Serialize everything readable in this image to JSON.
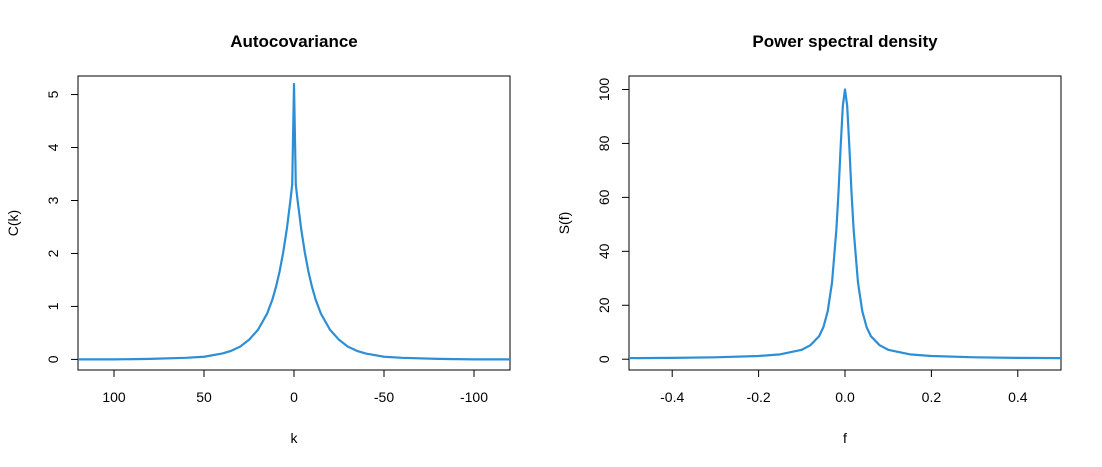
{
  "chart_data": [
    {
      "type": "line",
      "title": "Autocovariance",
      "xlabel": "k",
      "ylabel": "C(k)",
      "xlim": [
        120,
        -120
      ],
      "ylim": [
        -0.2,
        5.35
      ],
      "x_ticks": [
        100,
        50,
        0,
        -50,
        -100
      ],
      "x_tick_labels": [
        "100",
        "50",
        "0",
        "-50",
        "-100"
      ],
      "y_ticks": [
        0,
        1,
        2,
        3,
        4,
        5
      ],
      "y_tick_labels": [
        "0",
        "1",
        "2",
        "3",
        "4",
        "5"
      ],
      "grid": false,
      "series": [
        {
          "color": "#2c8fd6",
          "x": [
            -120,
            -100,
            -80,
            -60,
            -50,
            -40,
            -35,
            -30,
            -25,
            -20,
            -15,
            -12,
            -10,
            -8,
            -6,
            -4,
            -2,
            -1,
            0,
            1,
            2,
            4,
            6,
            8,
            10,
            12,
            15,
            20,
            25,
            30,
            35,
            40,
            50,
            60,
            80,
            100,
            120
          ],
          "y": [
            0.0,
            0.0,
            0.01,
            0.03,
            0.05,
            0.11,
            0.16,
            0.24,
            0.37,
            0.56,
            0.86,
            1.13,
            1.37,
            1.66,
            2.02,
            2.46,
            3.0,
            3.3,
            5.2,
            3.3,
            3.0,
            2.46,
            2.02,
            1.66,
            1.37,
            1.13,
            0.86,
            0.56,
            0.37,
            0.24,
            0.16,
            0.11,
            0.05,
            0.03,
            0.01,
            0.0,
            0.0
          ]
        }
      ]
    },
    {
      "type": "line",
      "title": "Power spectral density",
      "xlabel": "f",
      "ylabel": "S(f)",
      "xlim": [
        -0.5,
        0.5
      ],
      "ylim": [
        -4,
        105
      ],
      "x_ticks": [
        -0.4,
        -0.2,
        0.0,
        0.2,
        0.4
      ],
      "x_tick_labels": [
        "-0.4",
        "-0.2",
        "0.0",
        "0.2",
        "0.4"
      ],
      "y_ticks": [
        0,
        20,
        40,
        60,
        80,
        100
      ],
      "y_tick_labels": [
        "0",
        "20",
        "40",
        "60",
        "80",
        "100"
      ],
      "grid": false,
      "series": [
        {
          "color": "#2c8fd6",
          "x": [
            -0.5,
            -0.4,
            -0.3,
            -0.2,
            -0.15,
            -0.1,
            -0.08,
            -0.06,
            -0.05,
            -0.04,
            -0.03,
            -0.02,
            -0.015,
            -0.01,
            -0.005,
            0.0,
            0.005,
            0.01,
            0.015,
            0.02,
            0.03,
            0.04,
            0.05,
            0.06,
            0.08,
            0.1,
            0.15,
            0.2,
            0.3,
            0.4,
            0.5
          ],
          "y": [
            0.4,
            0.5,
            0.7,
            1.2,
            1.8,
            3.5,
            5.2,
            8.5,
            11.9,
            17.8,
            28.5,
            48.0,
            62.0,
            79.0,
            94.0,
            100.0,
            94.0,
            79.0,
            62.0,
            48.0,
            28.5,
            17.8,
            11.9,
            8.5,
            5.2,
            3.5,
            1.8,
            1.2,
            0.7,
            0.5,
            0.4
          ]
        }
      ]
    }
  ]
}
